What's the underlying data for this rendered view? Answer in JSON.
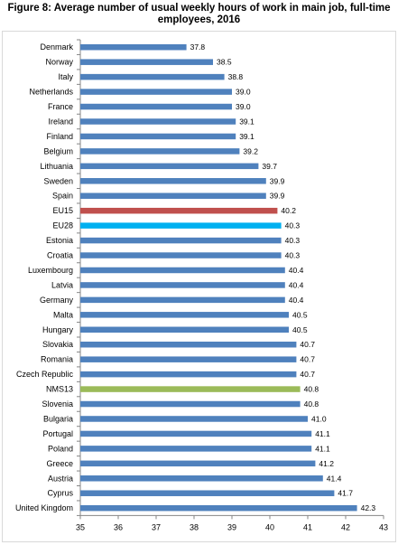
{
  "title_line1": "Figure 8: Average number of usual weekly hours of work in main job, full-time",
  "title_line2": "employees, 2016",
  "colors": {
    "default": "#4f81bd",
    "EU15": "#c0504d",
    "EU28": "#00b0f0",
    "NMS13": "#9bbb59"
  },
  "chart_data": {
    "type": "bar",
    "orientation": "horizontal",
    "categories": [
      "Denmark",
      "Norway",
      "Italy",
      "Netherlands",
      "France",
      "Ireland",
      "Finland",
      "Belgium",
      "Lithuania",
      "Sweden",
      "Spain",
      "EU15",
      "EU28",
      "Estonia",
      "Croatia",
      "Luxembourg",
      "Latvia",
      "Germany",
      "Malta",
      "Hungary",
      "Slovakia",
      "Romania",
      "Czech Republic",
      "NMS13",
      "Slovenia",
      "Bulgaria",
      "Portugal",
      "Poland",
      "Greece",
      "Austria",
      "Cyprus",
      "United Kingdom"
    ],
    "values": [
      37.8,
      38.5,
      38.8,
      39.0,
      39.0,
      39.1,
      39.1,
      39.2,
      39.7,
      39.9,
      39.9,
      40.2,
      40.3,
      40.3,
      40.3,
      40.4,
      40.4,
      40.4,
      40.5,
      40.5,
      40.7,
      40.7,
      40.7,
      40.8,
      40.8,
      41.0,
      41.1,
      41.1,
      41.2,
      41.4,
      41.7,
      42.3
    ],
    "value_labels": [
      "37.8",
      "38.5",
      "38.8",
      "39.0",
      "39.0",
      "39.1",
      "39.1",
      "39.2",
      "39.7",
      "39.9",
      "39.9",
      "40.2",
      "40.3",
      "40.3",
      "40.3",
      "40.4",
      "40.4",
      "40.4",
      "40.5",
      "40.5",
      "40.7",
      "40.7",
      "40.7",
      "40.8",
      "40.8",
      "41.0",
      "41.1",
      "41.1",
      "41.2",
      "41.4",
      "41.7",
      "42.3"
    ],
    "xlim": [
      35,
      43
    ],
    "xticks": [
      "35",
      "36",
      "37",
      "38",
      "39",
      "40",
      "41",
      "42",
      "43"
    ],
    "grid": false,
    "legend": false
  }
}
